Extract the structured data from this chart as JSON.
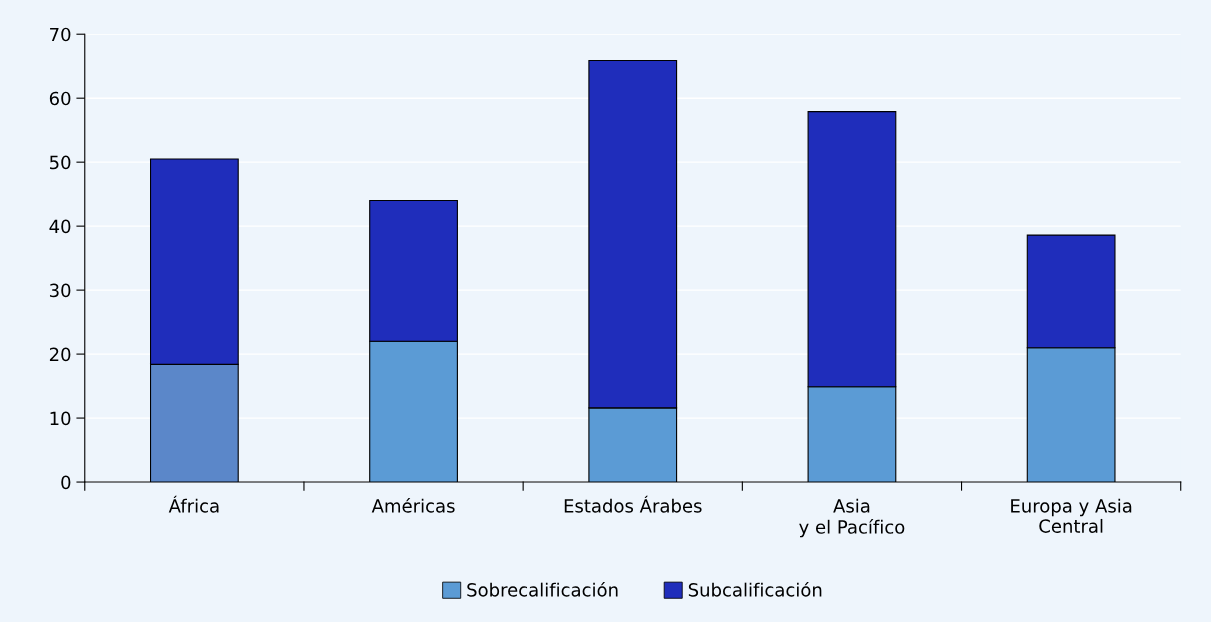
{
  "chart_data": {
    "type": "bar",
    "stacked": true,
    "categories": [
      "África",
      "Américas",
      "Estados Árabes",
      "Asia\ny el Pacífico",
      "Europa y Asia\nCentral"
    ],
    "series": [
      {
        "name": "Sobrecalificación",
        "color": "#5b9bd5",
        "colors": [
          "#5b87c9",
          "#5b9bd5",
          "#5b9bd5",
          "#5b9bd5",
          "#5b9bd5"
        ],
        "values": [
          18.4,
          22.0,
          11.6,
          14.9,
          21.0
        ]
      },
      {
        "name": "Subcalificación",
        "color": "#1f2dbb",
        "values": [
          32.1,
          22.0,
          54.3,
          43.0,
          17.6
        ]
      }
    ],
    "ylim": [
      0,
      70
    ],
    "yticks": [
      0,
      10,
      20,
      30,
      40,
      50,
      60,
      70
    ],
    "grid": "y",
    "legend": "bottom"
  }
}
